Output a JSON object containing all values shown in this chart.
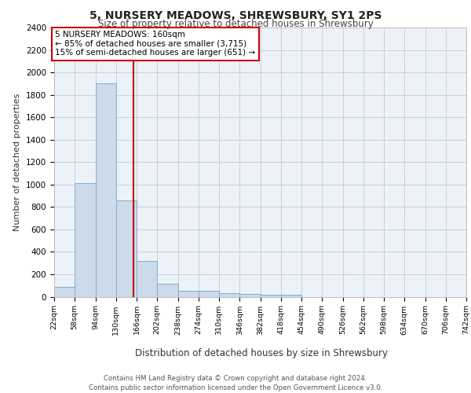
{
  "title_line1": "5, NURSERY MEADOWS, SHREWSBURY, SY1 2PS",
  "title_line2": "Size of property relative to detached houses in Shrewsbury",
  "xlabel": "Distribution of detached houses by size in Shrewsbury",
  "ylabel": "Number of detached properties",
  "bar_color": "#ccdaea",
  "bar_edge_color": "#7aafd4",
  "vline_color": "#cc0000",
  "vline_x": 160,
  "annotation_line1": "5 NURSERY MEADOWS: 160sqm",
  "annotation_line2": "← 85% of detached houses are smaller (3,715)",
  "annotation_line3": "15% of semi-detached houses are larger (651) →",
  "annotation_box_color": "#ffffff",
  "annotation_box_edge": "#cc0000",
  "bin_edges": [
    22,
    58,
    94,
    130,
    166,
    202,
    238,
    274,
    310,
    346,
    382,
    418,
    454,
    490,
    526,
    562,
    598,
    634,
    670,
    706,
    742
  ],
  "bar_heights": [
    90,
    1010,
    1900,
    860,
    320,
    115,
    55,
    50,
    35,
    25,
    20,
    20,
    0,
    0,
    0,
    0,
    0,
    0,
    0,
    0
  ],
  "ylim": [
    0,
    2400
  ],
  "yticks": [
    0,
    200,
    400,
    600,
    800,
    1000,
    1200,
    1400,
    1600,
    1800,
    2000,
    2200,
    2400
  ],
  "background_color": "#edf2f8",
  "footer_line1": "Contains HM Land Registry data © Crown copyright and database right 2024.",
  "footer_line2": "Contains public sector information licensed under the Open Government Licence v3.0."
}
